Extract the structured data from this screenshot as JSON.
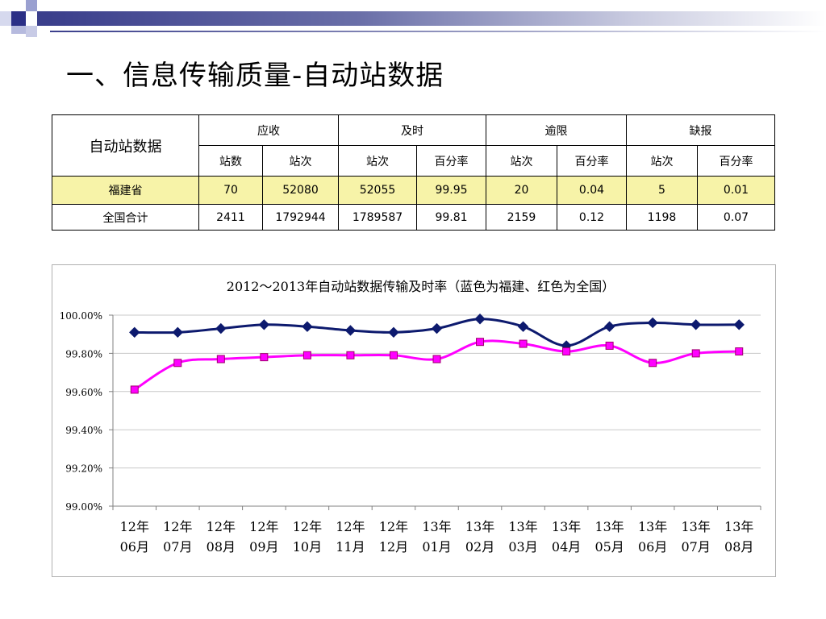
{
  "slide": {
    "title": "一、信息传输质量-自动站数据"
  },
  "table": {
    "corner_label": "自动站数据",
    "groups": [
      {
        "label": "应收",
        "cols": [
          "站数",
          "站次"
        ]
      },
      {
        "label": "及时",
        "cols": [
          "站次",
          "百分率"
        ]
      },
      {
        "label": "逾限",
        "cols": [
          "站次",
          "百分率"
        ]
      },
      {
        "label": "缺报",
        "cols": [
          "站次",
          "百分率"
        ]
      }
    ],
    "rows": [
      {
        "name": "福建省",
        "cells": [
          "70",
          "52080",
          "52055",
          "99.95",
          "20",
          "0.04",
          "5",
          "0.01"
        ]
      },
      {
        "name": "全国合计",
        "cells": [
          "2411",
          "1792944",
          "1789587",
          "99.81",
          "2159",
          "0.12",
          "1198",
          "0.07"
        ]
      }
    ]
  },
  "colors": {
    "fujian": "#0d1a6e",
    "national": "#ff00ff",
    "highlight_row": "#f7f3a8"
  },
  "chart_data": {
    "type": "line",
    "title": "2012～2013年自动站数据传输及时率（蓝色为福建、红色为全国）",
    "categories": [
      [
        "12年",
        "06月"
      ],
      [
        "12年",
        "07月"
      ],
      [
        "12年",
        "08月"
      ],
      [
        "12年",
        "09月"
      ],
      [
        "12年",
        "10月"
      ],
      [
        "12年",
        "11月"
      ],
      [
        "12年",
        "12月"
      ],
      [
        "13年",
        "01月"
      ],
      [
        "13年",
        "02月"
      ],
      [
        "13年",
        "03月"
      ],
      [
        "13年",
        "04月"
      ],
      [
        "13年",
        "05月"
      ],
      [
        "13年",
        "06月"
      ],
      [
        "13年",
        "07月"
      ],
      [
        "13年",
        "08月"
      ]
    ],
    "ylim": [
      99.0,
      100.0
    ],
    "yticks": [
      "99.00%",
      "99.20%",
      "99.40%",
      "99.60%",
      "99.80%",
      "100.00%"
    ],
    "grid": true,
    "series": [
      {
        "color": "#0d1a6e",
        "marker": "diamond",
        "values": [
          99.91,
          99.91,
          99.93,
          99.95,
          99.94,
          99.92,
          99.91,
          99.93,
          99.98,
          99.94,
          99.84,
          99.94,
          99.96,
          99.95,
          99.95
        ]
      },
      {
        "color": "#ff00ff",
        "marker": "square",
        "values": [
          99.61,
          99.75,
          99.77,
          99.78,
          99.79,
          99.79,
          99.79,
          99.77,
          99.86,
          99.85,
          99.81,
          99.84,
          99.75,
          99.8,
          99.81
        ]
      }
    ]
  }
}
